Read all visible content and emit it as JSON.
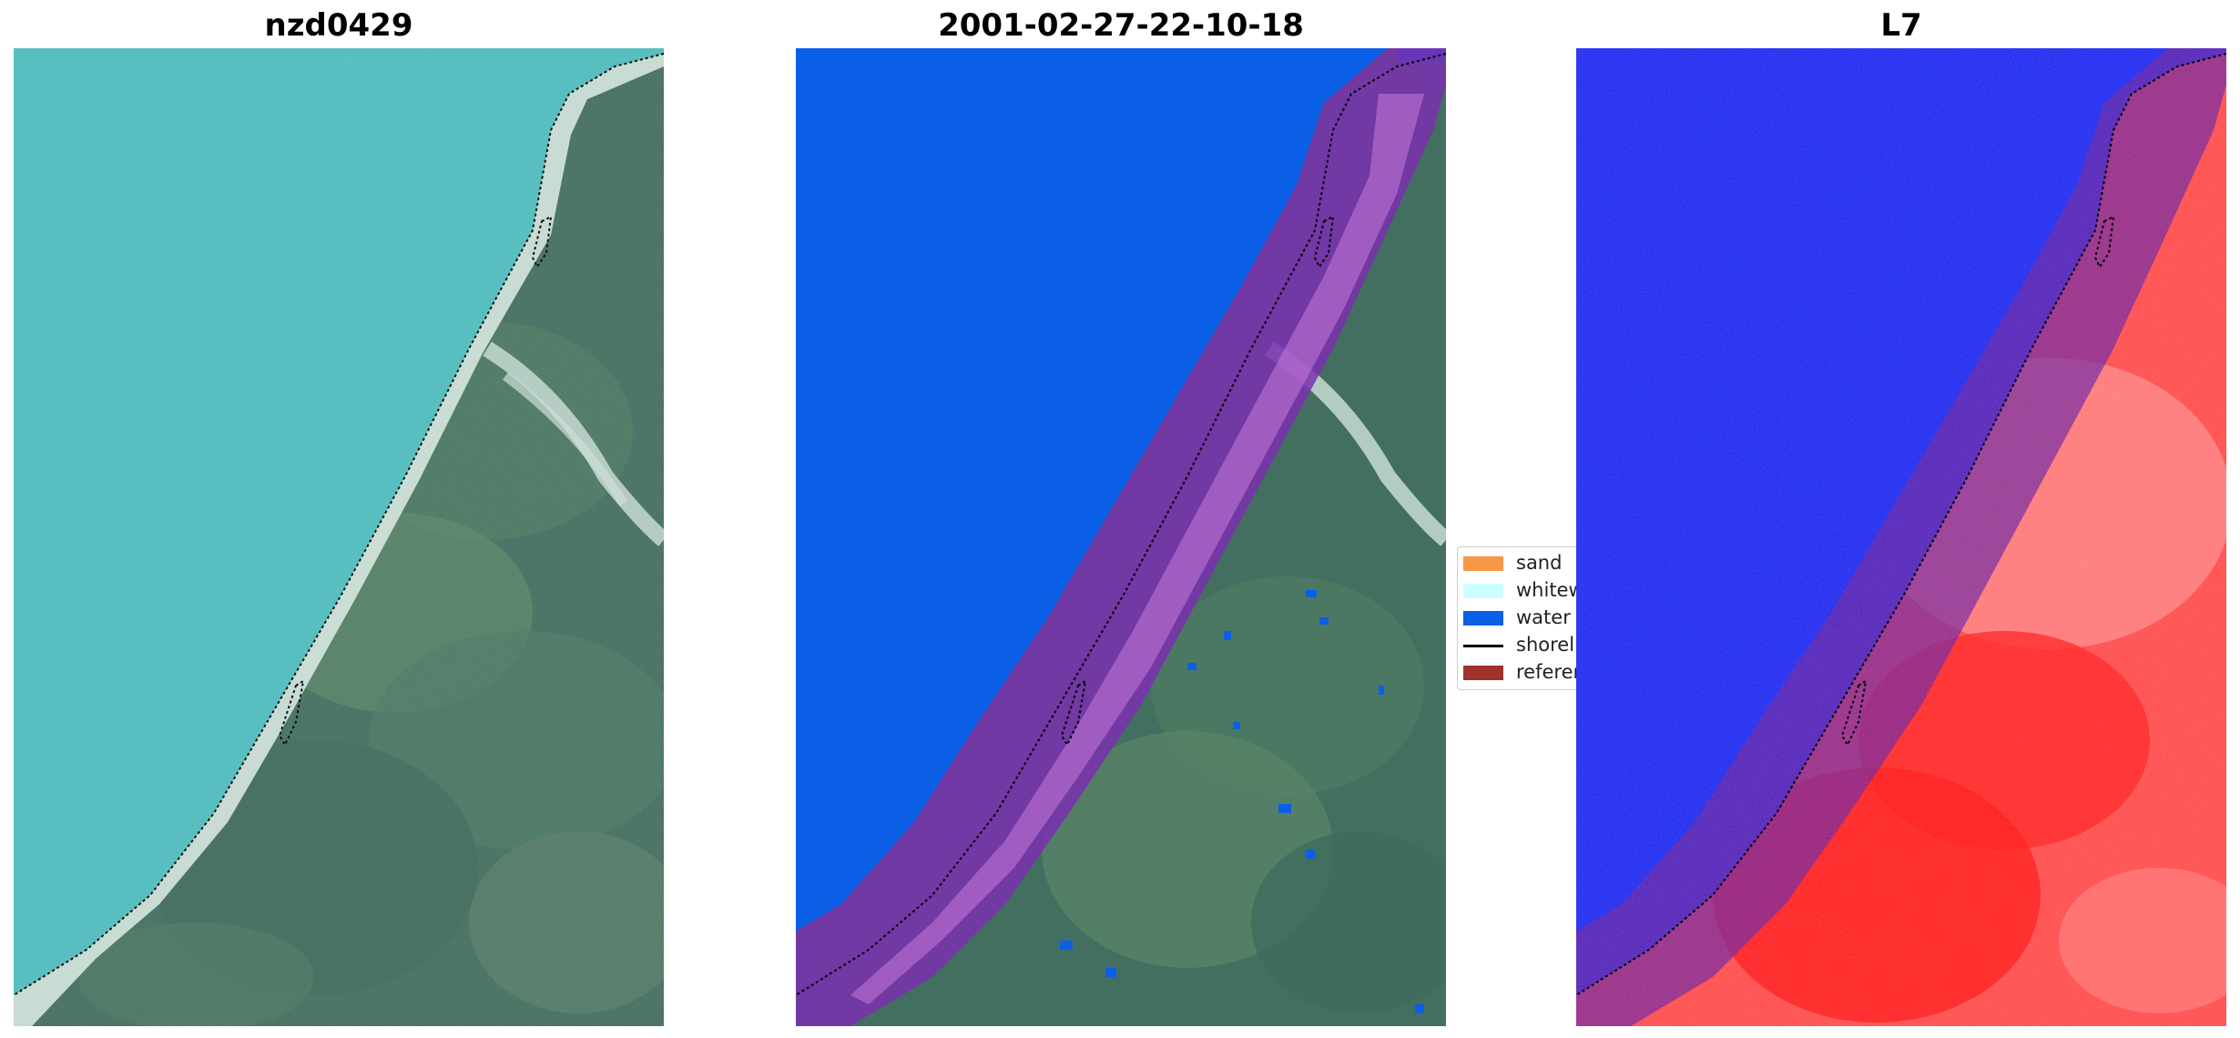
{
  "panels": [
    {
      "title": "nzd0429"
    },
    {
      "title": "2001-02-27-22-10-18"
    },
    {
      "title": "L7"
    }
  ],
  "legend": {
    "items": [
      {
        "label": "sand",
        "color": "#f79646",
        "type": "patch"
      },
      {
        "label": "whitew",
        "color": "#ccffff",
        "type": "patch"
      },
      {
        "label": "water",
        "color": "#0b5fe6",
        "type": "patch"
      },
      {
        "label": "shorel",
        "color": "#000000",
        "type": "line"
      },
      {
        "label": "referen",
        "color": "#a0322d",
        "type": "patch"
      }
    ]
  },
  "colors": {
    "ocean": "#4ebfc0",
    "vegetation": "#3f6e5f",
    "water_class": "#0b5fe6",
    "reference_buffer": "#8a2ccf",
    "index_water": "#1d28f0",
    "index_land": "#ff2a2a"
  }
}
